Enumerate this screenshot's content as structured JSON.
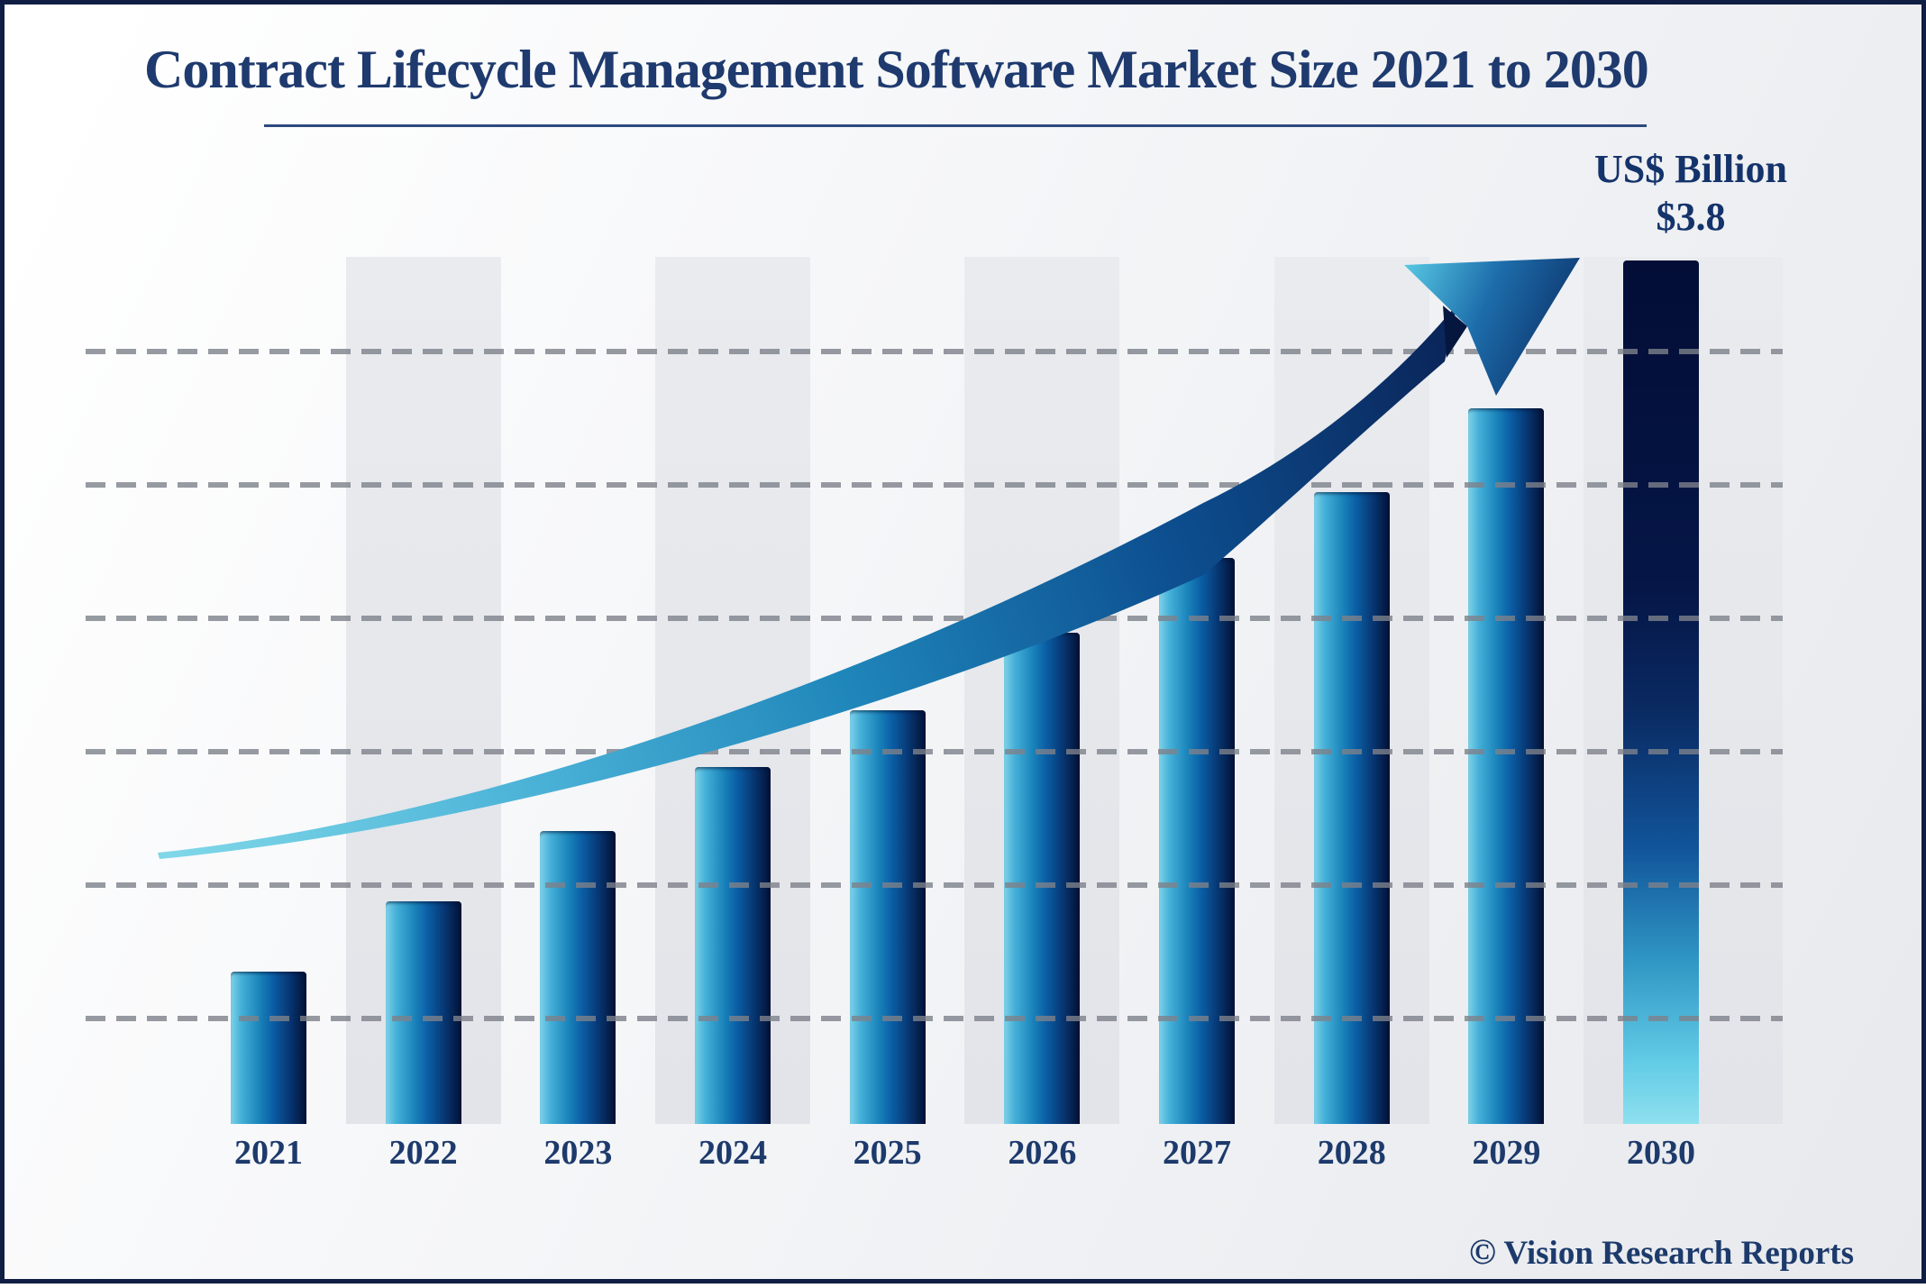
{
  "title": "Contract Lifecycle Management Software Market Size 2021 to 2030",
  "annotation": {
    "unit_label": "US$ Billion",
    "value_label": "$3.8"
  },
  "watermark": {
    "symbol": "©",
    "text": "Vision Research Reports"
  },
  "colors": {
    "title_text": "#1e3a6e",
    "label_text": "#1d3a6c",
    "frame_border": "#0f1e42",
    "background_band": "#e5e7ea",
    "gridline": "#8d9198",
    "bar_gradient_light": "#7ed2e8",
    "bar_gradient_mid": "#0b5fa6",
    "bar_gradient_dark": "#021034",
    "arrow_light": "#6fd3e6",
    "arrow_dark": "#0a2458"
  },
  "chart_data": {
    "type": "bar",
    "title": "Contract Lifecycle Management Software Market Size 2021 to 2030",
    "unit": "US$ Billion",
    "categories": [
      "2021",
      "2022",
      "2023",
      "2024",
      "2025",
      "2026",
      "2027",
      "2028",
      "2029",
      "2030"
    ],
    "values": [
      0.67,
      0.98,
      1.29,
      1.57,
      1.82,
      2.16,
      2.49,
      2.78,
      3.15,
      3.8
    ],
    "values_note": "only the 2030 value is labeled on the chart ($3.8); other values estimated from bar heights",
    "labeled_point": {
      "category": "2030",
      "label": "$3.8"
    },
    "xlabel": "",
    "ylabel": "",
    "ylim": [
      0,
      3.8
    ],
    "y_axis_ticks_shown": false,
    "grid": "horizontal-dashed",
    "gridline_count": 6,
    "legend": "none",
    "decorations": [
      "upward growth swoosh arrow",
      "alternating vertical background bands"
    ]
  }
}
